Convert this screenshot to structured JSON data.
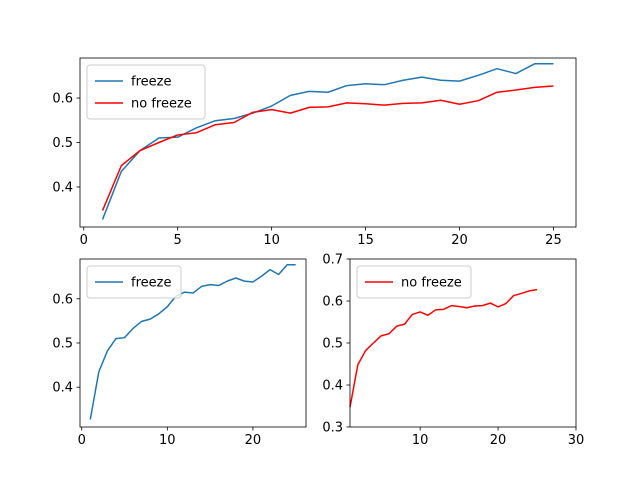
{
  "chart_data": [
    {
      "type": "line",
      "title": "",
      "xlabel": "",
      "ylabel": "",
      "xlim": [
        -0.2,
        26.2
      ],
      "ylim": [
        0.31,
        0.69
      ],
      "xticks": [
        0,
        5,
        10,
        15,
        20,
        25
      ],
      "yticks": [
        0.4,
        0.5,
        0.6
      ],
      "ytick_format": "fixed1",
      "legend": "upper-left",
      "grid": false,
      "series": [
        {
          "name": "freeze",
          "color": "#1f77b4",
          "x": [
            1,
            2,
            3,
            4,
            5,
            6,
            7,
            8,
            9,
            10,
            11,
            12,
            13,
            14,
            15,
            16,
            17,
            18,
            19,
            20,
            21,
            22,
            23,
            24,
            25
          ],
          "y": [
            0.327,
            0.435,
            0.482,
            0.51,
            0.512,
            0.533,
            0.549,
            0.554,
            0.566,
            0.582,
            0.606,
            0.615,
            0.613,
            0.628,
            0.632,
            0.63,
            0.64,
            0.647,
            0.64,
            0.638,
            0.651,
            0.666,
            0.655,
            0.677,
            0.677
          ]
        },
        {
          "name": "no freeze",
          "color": "#ff0000",
          "x": [
            1,
            2,
            3,
            4,
            5,
            6,
            7,
            8,
            9,
            10,
            11,
            12,
            13,
            14,
            15,
            16,
            17,
            18,
            19,
            20,
            21,
            22,
            23,
            24,
            25
          ],
          "y": [
            0.347,
            0.448,
            0.482,
            0.5,
            0.517,
            0.522,
            0.54,
            0.545,
            0.568,
            0.574,
            0.566,
            0.579,
            0.58,
            0.589,
            0.587,
            0.584,
            0.588,
            0.589,
            0.595,
            0.586,
            0.594,
            0.613,
            0.618,
            0.624,
            0.627
          ]
        }
      ]
    },
    {
      "type": "line",
      "title": "",
      "xlabel": "",
      "ylabel": "",
      "xlim": [
        -0.2,
        26.2
      ],
      "ylim": [
        0.31,
        0.69
      ],
      "xticks": [
        0,
        10,
        20
      ],
      "yticks": [
        0.4,
        0.5,
        0.6
      ],
      "ytick_format": "fixed1",
      "legend": "upper-left",
      "grid": false,
      "series": [
        {
          "name": "freeze",
          "color": "#1f77b4",
          "x": [
            1,
            2,
            3,
            4,
            5,
            6,
            7,
            8,
            9,
            10,
            11,
            12,
            13,
            14,
            15,
            16,
            17,
            18,
            19,
            20,
            21,
            22,
            23,
            24,
            25
          ],
          "y": [
            0.327,
            0.435,
            0.482,
            0.51,
            0.512,
            0.533,
            0.549,
            0.554,
            0.566,
            0.582,
            0.606,
            0.615,
            0.613,
            0.628,
            0.632,
            0.63,
            0.64,
            0.647,
            0.64,
            0.638,
            0.651,
            0.666,
            0.655,
            0.677,
            0.677
          ]
        }
      ]
    },
    {
      "type": "line",
      "title": "",
      "xlabel": "",
      "ylabel": "",
      "xlim": [
        1,
        30
      ],
      "ylim": [
        0.3,
        0.7
      ],
      "xticks": [
        10,
        20,
        30
      ],
      "yticks": [
        0.3,
        0.4,
        0.5,
        0.6,
        0.7
      ],
      "ytick_format": "fixed1",
      "legend": "upper-left",
      "grid": false,
      "series": [
        {
          "name": "no freeze",
          "color": "#ff0000",
          "x": [
            1,
            2,
            3,
            4,
            5,
            6,
            7,
            8,
            9,
            10,
            11,
            12,
            13,
            14,
            15,
            16,
            17,
            18,
            19,
            20,
            21,
            22,
            23,
            24,
            25
          ],
          "y": [
            0.347,
            0.448,
            0.482,
            0.5,
            0.517,
            0.522,
            0.54,
            0.545,
            0.568,
            0.574,
            0.566,
            0.579,
            0.58,
            0.589,
            0.587,
            0.584,
            0.588,
            0.589,
            0.595,
            0.586,
            0.594,
            0.613,
            0.618,
            0.624,
            0.627
          ]
        }
      ]
    }
  ]
}
